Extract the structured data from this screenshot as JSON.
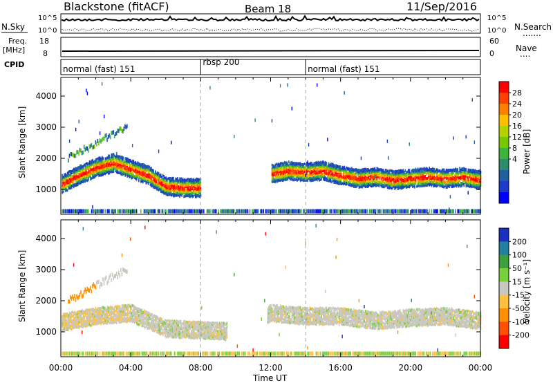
{
  "header": {
    "station": "Blackstone (fitACF)",
    "beam": "Beam 18",
    "date": "11/Sep/2016"
  },
  "left_labels": {
    "nsky": "N.Sky",
    "freq": "Freq.",
    "freq_unit": "[MHz]",
    "cpid": "CPID"
  },
  "right_labels": {
    "nsearch": "N.Search",
    "nave": "Nave"
  },
  "noise_ticks": {
    "top": "10^5",
    "bottom": "10^0"
  },
  "freq_ticks": {
    "top": "18",
    "bottom": "8"
  },
  "nave_ticks": {
    "top": "60",
    "bottom": "0"
  },
  "cpid_segments": [
    {
      "label": "normal (fast) 151",
      "start_hour": 0
    },
    {
      "label": "rbsp 200",
      "start_hour": 8
    },
    {
      "label": "normal (fast) 151",
      "start_hour": 14
    }
  ],
  "power_colorbar": {
    "label": "Power [dB]",
    "ticks": [
      "28",
      "24",
      "20",
      "16",
      "12",
      "8",
      "4"
    ],
    "colors": [
      "#ff0000",
      "#ff4000",
      "#ff8000",
      "#ffbf00",
      "#b4d200",
      "#78c800",
      "#3cb43c",
      "#2c8c6c",
      "#2060a0",
      "#1c3cc8",
      "#0000ff"
    ]
  },
  "velocity_colorbar": {
    "label": "Velocity [m s⁻¹]",
    "ticks": [
      "200",
      "100",
      "50",
      "15",
      "-15",
      "-50",
      "-100",
      "-200"
    ],
    "colors": [
      "#1c30c0",
      "#2080a0",
      "#3ca03c",
      "#78d03c",
      "#c8c8c0",
      "#ffc040",
      "#ff9000",
      "#ff5000",
      "#ff0000"
    ]
  },
  "chart_data": {
    "type": "heatmap",
    "xlabel": "Time UT",
    "ylabel": "Slant Range [km]",
    "x_ticks": [
      "00:00",
      "04:00",
      "08:00",
      "12:00",
      "16:00",
      "20:00",
      "00:00"
    ],
    "y_ticks": [
      1000,
      2000,
      3000,
      4000
    ],
    "xlim_hours": [
      0,
      24
    ],
    "ylim_km": [
      200,
      4600
    ],
    "power_echo_band": {
      "hours": [
        0,
        1,
        2,
        3,
        4,
        5,
        6,
        7,
        8,
        9,
        10,
        11,
        12,
        13,
        14,
        15,
        16,
        17,
        18,
        19,
        20,
        21,
        22,
        23,
        24
      ],
      "range_km": [
        1150,
        1450,
        1700,
        1850,
        1650,
        1450,
        1100,
        1050,
        1050,
        null,
        null,
        null,
        1500,
        1600,
        1550,
        1600,
        1450,
        1350,
        1400,
        1300,
        1350,
        1400,
        1350,
        1400,
        1300
      ]
    },
    "velocity_series": {
      "hours": [
        0,
        2,
        4,
        6,
        8,
        10,
        12,
        14,
        16,
        18,
        20,
        22,
        24
      ],
      "range_km": [
        1300,
        1500,
        1600,
        1100,
        1050,
        1000,
        1600,
        1500,
        1500,
        1350,
        1450,
        1500,
        1350
      ]
    }
  }
}
